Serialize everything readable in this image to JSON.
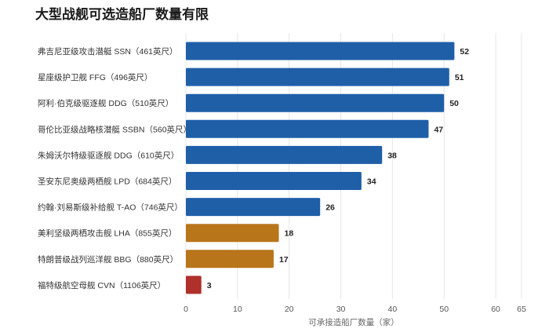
{
  "chart_data": {
    "type": "bar",
    "orientation": "horizontal",
    "title": "大型战舰可选造船厂数量有限",
    "xlabel": "可承接造船厂数量（家）",
    "ylabel": "",
    "xlim": [
      0,
      65
    ],
    "xticks": [
      0,
      10,
      20,
      30,
      40,
      50,
      60,
      65
    ],
    "grid": true,
    "categories": [
      "弗吉尼亚级攻击潜艇 SSN（461英尺）",
      "星座级护卫舰 FFG（496英尺）",
      "阿利·伯克级驱逐舰 DDG（510英尺）",
      "哥伦比亚级战略核潜艇 SSBN（560英尺）",
      "朱姆沃尔特级驱逐舰 DDG（610英尺）",
      "圣安东尼奥级两栖舰 LPD（684英尺）",
      "约翰·刘易斯级补给舰 T-AO（746英尺）",
      "美利坚级两栖攻击舰 LHA（855英尺）",
      "特朗普级战列巡洋舰 BBG（880英尺）",
      "福特级航空母舰 CVN（1106英尺）"
    ],
    "values": [
      52,
      51,
      50,
      47,
      38,
      34,
      26,
      18,
      17,
      3
    ],
    "bar_colors": [
      "#1f5fa8",
      "#1f5fa8",
      "#1f5fa8",
      "#1f5fa8",
      "#1f5fa8",
      "#1f5fa8",
      "#1f5fa8",
      "#b8751a",
      "#b8751a",
      "#b0302c"
    ]
  },
  "colors": {
    "grid": "#e6e6e6",
    "axis_text": "#555555"
  }
}
